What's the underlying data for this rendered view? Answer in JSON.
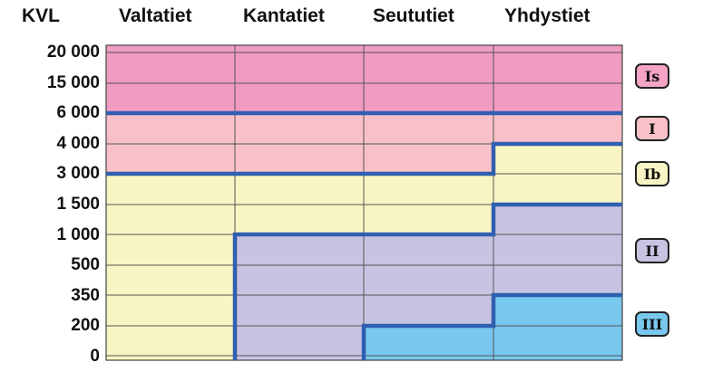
{
  "corner_label": "KVL",
  "columns": [
    "Valtatiet",
    "Kantatiet",
    "Seututiet",
    "Yhdystiet"
  ],
  "row_labels": [
    "20 000",
    "15 000",
    "6 000",
    "4 000",
    "3 000",
    "1 500",
    "1 000",
    "500",
    "350",
    "200",
    "0"
  ],
  "classes": [
    {
      "label": "Is",
      "color": "#f5a3c6"
    },
    {
      "label": "I",
      "color": "#f8c0c8"
    },
    {
      "label": "Ib",
      "color": "#f8f5c4"
    },
    {
      "label": "II",
      "color": "#c8c3e2"
    },
    {
      "label": "III",
      "color": "#78c8ee"
    }
  ],
  "zones": [
    {
      "class": "Is",
      "color": "#f09cc2"
    },
    {
      "class": "I",
      "color": "#f8c0c8"
    },
    {
      "class": "Ib",
      "color": "#f8f5c4"
    },
    {
      "class": "II",
      "color": "#c8c3e2"
    },
    {
      "class": "III",
      "color": "#78c8ee"
    }
  ],
  "boundary_color": "#2f5fb0",
  "grid_color": "#555555"
}
